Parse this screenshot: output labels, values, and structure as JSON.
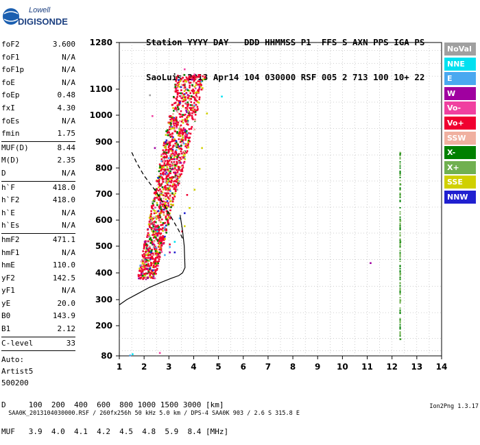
{
  "logo": {
    "line1": "Lowell",
    "line2": "DIGISONDE"
  },
  "header": {
    "line1": "Station YYYY DAY   DDD HHMMSS P1  FFS S AXN PPS IGA PS",
    "line2": "SaoLuis 2013 Apr14 104 030000 RSF 005 2 713 100 10+ 22"
  },
  "params": [
    [
      {
        "label": "foF2",
        "value": "3.600"
      },
      {
        "label": "foF1",
        "value": "N/A"
      },
      {
        "label": "foF1p",
        "value": "N/A"
      },
      {
        "label": "foE",
        "value": "N/A"
      },
      {
        "label": "foEp",
        "value": "0.48"
      },
      {
        "label": "fxI",
        "value": "4.30"
      },
      {
        "label": "foEs",
        "value": "N/A"
      },
      {
        "label": "fmin",
        "value": "1.75"
      }
    ],
    [
      {
        "label": "MUF(D)",
        "value": "8.44"
      },
      {
        "label": "M(D)",
        "value": "2.35"
      },
      {
        "label": "D",
        "value": "N/A"
      }
    ],
    [
      {
        "label": "h`F",
        "value": "418.0"
      },
      {
        "label": "h`F2",
        "value": "418.0"
      },
      {
        "label": "h`E",
        "value": "N/A"
      },
      {
        "label": "h`Es",
        "value": "N/A"
      }
    ],
    [
      {
        "label": "hmF2",
        "value": "471.1"
      },
      {
        "label": "hmF1",
        "value": "N/A"
      },
      {
        "label": "hmE",
        "value": "110.0"
      },
      {
        "label": "yF2",
        "value": "142.5"
      },
      {
        "label": "yF1",
        "value": "N/A"
      },
      {
        "label": "yE",
        "value": "20.0"
      },
      {
        "label": "B0",
        "value": "143.9"
      },
      {
        "label": "B1",
        "value": "2.12"
      }
    ],
    [
      {
        "label": "C-level",
        "value": "33"
      }
    ]
  ],
  "auto": [
    "Auto:",
    "Artist5",
    "500200"
  ],
  "legend": [
    {
      "label": "NoVal",
      "color": "#a0a0a0"
    },
    {
      "label": "NNE",
      "color": "#00e0f0"
    },
    {
      "label": "E",
      "color": "#4aa8f0"
    },
    {
      "label": "W",
      "color": "#a000a0"
    },
    {
      "label": "Vo-",
      "color": "#f040a0"
    },
    {
      "label": "Vo+",
      "color": "#f00030"
    },
    {
      "label": "SSW",
      "color": "#f0b0a0"
    },
    {
      "label": "X-",
      "color": "#008000"
    },
    {
      "label": "X+",
      "color": "#70b050"
    },
    {
      "label": "SSE",
      "color": "#d0d000"
    },
    {
      "label": "NNW",
      "color": "#2020d0"
    }
  ],
  "footer": {
    "line1": "D     100  200  400  600  800 1000 1500 3000 [km]",
    "line2": "MUF   3.9  4.0  4.1  4.2  4.5  4.8  5.9  8.4 [MHz]"
  },
  "filebar": "SAA0K_2013104030000.RSF / 260fx256h 50 kHz 5.0 km / DPS-4 SAA0K 903 / 2.6 S 315.8 E",
  "version": "Ion2Png 1.3.17",
  "chart_data": {
    "type": "scatter",
    "xlim": [
      1,
      14
    ],
    "ylim": [
      80,
      1280
    ],
    "x_ticks": [
      "1",
      "2",
      "3",
      "4",
      "5",
      "6",
      "7",
      "8",
      "9",
      "10",
      "11",
      "12",
      "13",
      "14"
    ],
    "y_ticks": [
      "80",
      "200",
      "300",
      "400",
      "500",
      "600",
      "700",
      "800",
      "900",
      "1000",
      "1100",
      "1280"
    ],
    "grid": true,
    "legend_position": "right",
    "series": [
      {
        "name": "NoVal",
        "points": [
          [
            2.2,
            1080
          ],
          [
            3.0,
            620
          ],
          [
            3.1,
            850
          ],
          [
            3.3,
            720
          ]
        ]
      },
      {
        "name": "NNE",
        "points": [
          [
            1.5,
            90
          ],
          [
            5.1,
            1075
          ],
          [
            2.5,
            560
          ],
          [
            3.2,
            520
          ]
        ]
      },
      {
        "name": "E",
        "points": [
          [
            3.0,
            500
          ],
          [
            2.8,
            470
          ],
          [
            3.4,
            610
          ],
          [
            1.4,
            85
          ]
        ]
      },
      {
        "name": "W",
        "points": [
          [
            2.0,
            520
          ],
          [
            3.9,
            1140
          ],
          [
            3.0,
            480
          ],
          [
            4.2,
            1110
          ],
          [
            2.4,
            880
          ],
          [
            11.1,
            440
          ]
        ]
      },
      {
        "name": "Vo-",
        "points": [
          [
            3.3,
            1110
          ],
          [
            4.0,
            1160
          ],
          [
            2.3,
            1000
          ],
          [
            3.6,
            1180
          ],
          [
            2.6,
            95
          ]
        ]
      },
      {
        "name": "Vo+",
        "points": [
          [
            2.0,
            430
          ],
          [
            2.5,
            460
          ],
          [
            3.0,
            510
          ],
          [
            3.5,
            560
          ],
          [
            3.7,
            700
          ],
          [
            2.2,
            395
          ],
          [
            1.9,
            470
          ]
        ]
      },
      {
        "name": "SSW",
        "points": [
          [
            3.5,
            900
          ],
          [
            3.8,
            1060
          ],
          [
            3.3,
            780
          ],
          [
            4.0,
            950
          ],
          [
            3.0,
            690
          ]
        ]
      },
      {
        "name": "X-",
        "points": [
          [
            12.3,
            520
          ],
          [
            12.3,
            740
          ],
          [
            12.3,
            150
          ]
        ]
      },
      {
        "name": "X+",
        "points": [
          [
            12.3,
            860
          ],
          [
            12.3,
            600
          ],
          [
            12.3,
            300
          ],
          [
            12.3,
            400
          ]
        ]
      },
      {
        "name": "SSE",
        "points": [
          [
            4.2,
            800
          ],
          [
            4.0,
            720
          ],
          [
            4.5,
            1010
          ],
          [
            3.8,
            650
          ],
          [
            4.3,
            880
          ],
          [
            3.6,
            580
          ]
        ]
      },
      {
        "name": "NNW",
        "points": [
          [
            3.2,
            480
          ],
          [
            2.8,
            540
          ],
          [
            3.6,
            630
          ]
        ]
      }
    ],
    "virtual_height_curve": [
      [
        1.5,
        860
      ],
      [
        1.7,
        820
      ],
      [
        2.0,
        770
      ],
      [
        2.4,
        720
      ],
      [
        2.8,
        660
      ],
      [
        3.1,
        610
      ],
      [
        3.4,
        560
      ],
      [
        3.6,
        520
      ]
    ],
    "profile_curve": [
      [
        1.0,
        280
      ],
      [
        1.3,
        300
      ],
      [
        1.7,
        320
      ],
      [
        2.2,
        345
      ],
      [
        2.7,
        365
      ],
      [
        3.1,
        380
      ],
      [
        3.4,
        390
      ],
      [
        3.55,
        400
      ],
      [
        3.65,
        420
      ],
      [
        3.62,
        500
      ],
      [
        3.55,
        560
      ],
      [
        3.45,
        620
      ]
    ]
  }
}
